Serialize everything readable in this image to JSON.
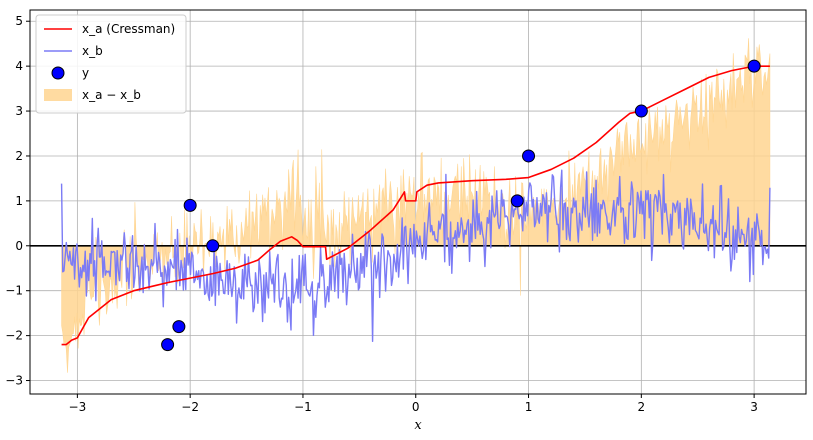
{
  "chart_data": {
    "type": "line",
    "title": "",
    "xlabel": "x",
    "ylabel": "",
    "xlim": [
      -3.42,
      3.46
    ],
    "ylim": [
      -3.3,
      5.25
    ],
    "xticks": [
      -3,
      -2,
      -1,
      0,
      1,
      2,
      3
    ],
    "yticks": [
      -3,
      -2,
      -1,
      0,
      1,
      2,
      3,
      4,
      5
    ],
    "grid": true,
    "legend_position": "top-left",
    "colors": {
      "analysis": "#ff0000",
      "background": "#7b7bf5",
      "observations_fill": "#0000ff",
      "observations_edge": "#000000",
      "increment": "#ffd591",
      "zero_line": "#000000",
      "grid": "#b0b0b0"
    },
    "legend": [
      {
        "key": "analysis",
        "label": "x_a (Cressman)",
        "marker": "line"
      },
      {
        "key": "background",
        "label": "x_b",
        "marker": "line"
      },
      {
        "key": "observations",
        "label": "y",
        "marker": "circle"
      },
      {
        "key": "increment",
        "label": "x_a − x_b",
        "marker": "patch"
      }
    ],
    "observations": {
      "name": "y",
      "x": [
        -2.2,
        -2.1,
        -2.0,
        -1.8,
        0.9,
        1.0,
        2.0,
        3.0
      ],
      "y": [
        -2.2,
        -1.8,
        0.9,
        0.0,
        1.0,
        2.0,
        3.0,
        4.0
      ]
    },
    "analysis": {
      "name": "x_a (Cressman)",
      "x": [
        -3.14,
        -3.1,
        -3.05,
        -3.0,
        -2.9,
        -2.8,
        -2.7,
        -2.5,
        -2.3,
        -2.2,
        -2.0,
        -1.8,
        -1.6,
        -1.4,
        -1.3,
        -1.2,
        -1.1,
        -1.05,
        -1.0,
        -0.8,
        -0.79,
        -0.6,
        -0.4,
        -0.2,
        -0.1,
        -0.09,
        0.0,
        0.01,
        0.1,
        0.2,
        0.5,
        0.8,
        0.9,
        1.0,
        1.2,
        1.4,
        1.6,
        1.8,
        1.9,
        2.0,
        2.2,
        2.4,
        2.6,
        2.8,
        3.0,
        3.14
      ],
      "y": [
        -2.2,
        -2.2,
        -2.1,
        -2.05,
        -1.6,
        -1.4,
        -1.2,
        -1.0,
        -0.88,
        -0.82,
        -0.72,
        -0.62,
        -0.5,
        -0.32,
        -0.1,
        0.1,
        0.2,
        0.12,
        -0.02,
        -0.02,
        -0.3,
        -0.05,
        0.35,
        0.8,
        1.2,
        1.0,
        1.0,
        1.2,
        1.35,
        1.4,
        1.45,
        1.48,
        1.5,
        1.52,
        1.7,
        1.95,
        2.3,
        2.75,
        2.95,
        3.0,
        3.25,
        3.5,
        3.75,
        3.9,
        4.0,
        4.0
      ]
    },
    "background": {
      "name": "x_b",
      "x_start": -3.14,
      "x_end": 3.14,
      "count": 600,
      "seed": 7,
      "trend": {
        "x": [
          -3.14,
          -2.0,
          -1.0,
          0.0,
          1.0,
          2.0,
          3.14
        ],
        "y": [
          -0.25,
          -0.65,
          -0.95,
          0.05,
          0.85,
          0.75,
          0.15
        ]
      },
      "noise": 0.42
    },
    "increment": {
      "name": "x_a − x_b",
      "description_fill_between": "area between 0 and (x_a - x_b)",
      "noise": 0.45
    },
    "zero_line": 0
  }
}
